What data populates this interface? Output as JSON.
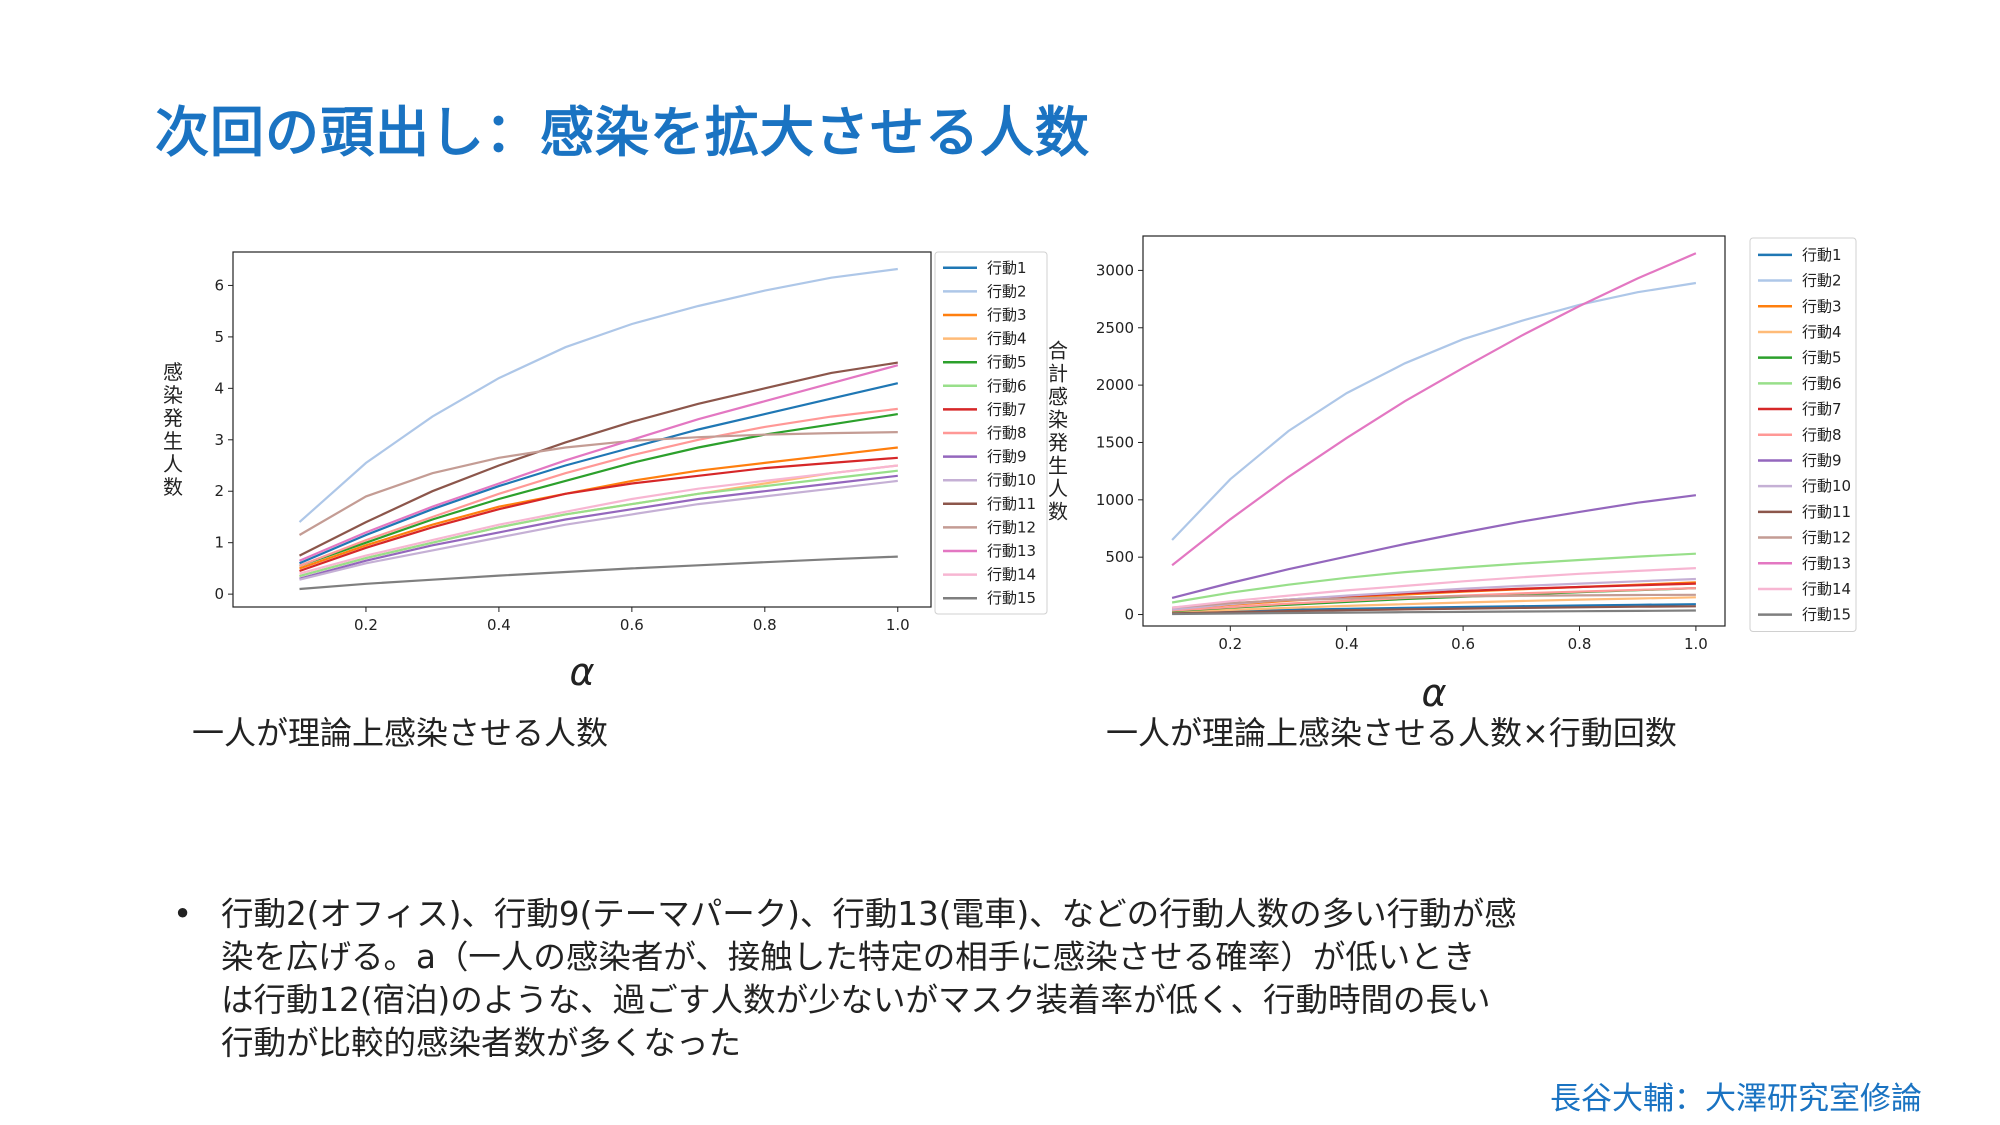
{
  "slide": {
    "title": "次回の頭出し：感染を拡大させる人数",
    "caption_left": "一人が理論上感染させる人数",
    "caption_right": "一人が理論上感染させる人数×行動回数",
    "bullet_symbol": "•",
    "bullet_lines": [
      "行動2(オフィス)、行動9(テーマパーク)、行動13(電車)、などの行動人数の多い行動が感",
      "染を広げる。a（一人の感染者が、接触した特定の相手に感染させる確率）が低いとき",
      "は行動12(宿泊)のような、過ごす人数が少ないがマスク装着率が低く、行動時間の長い",
      "行動が比較的感染者数が多くなった"
    ],
    "citation": "長谷大輔：大澤研究室修論"
  },
  "chart_data": [
    {
      "type": "line",
      "xlabel": "α",
      "ylabel": "感染発生人数",
      "xlim": [
        0.0,
        1.05
      ],
      "ylim": [
        -0.25,
        6.65
      ],
      "xticks": [
        "0.2",
        "0.4",
        "0.6",
        "0.8",
        "1.0"
      ],
      "yticks": [
        "0",
        "1",
        "2",
        "3",
        "4",
        "5",
        "6"
      ],
      "grid": false,
      "legend_position": "right-outside",
      "x": [
        0.1,
        0.2,
        0.3,
        0.4,
        0.5,
        0.6,
        0.7,
        0.8,
        0.9,
        1.0
      ],
      "series": [
        {
          "name": "行動1",
          "color": "#1f77b4",
          "values": [
            0.6,
            1.15,
            1.65,
            2.1,
            2.5,
            2.85,
            3.2,
            3.5,
            3.8,
            4.1
          ]
        },
        {
          "name": "行動2",
          "color": "#aec7e8",
          "values": [
            1.4,
            2.55,
            3.45,
            4.2,
            4.8,
            5.25,
            5.6,
            5.9,
            6.15,
            6.32
          ]
        },
        {
          "name": "行動3",
          "color": "#ff7f0e",
          "values": [
            0.5,
            0.95,
            1.35,
            1.7,
            1.95,
            2.2,
            2.4,
            2.55,
            2.7,
            2.85
          ]
        },
        {
          "name": "行動4",
          "color": "#ffbb78",
          "values": [
            0.35,
            0.7,
            1.0,
            1.3,
            1.55,
            1.75,
            1.95,
            2.15,
            2.35,
            2.5
          ]
        },
        {
          "name": "行動5",
          "color": "#2ca02c",
          "values": [
            0.55,
            1.0,
            1.45,
            1.85,
            2.2,
            2.55,
            2.85,
            3.1,
            3.3,
            3.5
          ]
        },
        {
          "name": "行動6",
          "color": "#98df8a",
          "values": [
            0.35,
            0.7,
            1.0,
            1.3,
            1.55,
            1.75,
            1.95,
            2.1,
            2.25,
            2.4
          ]
        },
        {
          "name": "行動7",
          "color": "#d62728",
          "values": [
            0.45,
            0.9,
            1.3,
            1.65,
            1.95,
            2.15,
            2.3,
            2.45,
            2.55,
            2.65
          ]
        },
        {
          "name": "行動8",
          "color": "#ff9896",
          "values": [
            0.55,
            1.05,
            1.5,
            1.95,
            2.35,
            2.7,
            3.0,
            3.25,
            3.45,
            3.6
          ]
        },
        {
          "name": "行動9",
          "color": "#9467bd",
          "values": [
            0.3,
            0.65,
            0.95,
            1.2,
            1.45,
            1.65,
            1.85,
            2.0,
            2.15,
            2.3
          ]
        },
        {
          "name": "行動10",
          "color": "#c5b0d5",
          "values": [
            0.28,
            0.6,
            0.85,
            1.1,
            1.35,
            1.55,
            1.75,
            1.9,
            2.05,
            2.2
          ]
        },
        {
          "name": "行動11",
          "color": "#8c564b",
          "values": [
            0.75,
            1.4,
            2.0,
            2.5,
            2.95,
            3.35,
            3.7,
            4.0,
            4.3,
            4.5
          ]
        },
        {
          "name": "行動12",
          "color": "#c49c94",
          "values": [
            1.15,
            1.9,
            2.35,
            2.65,
            2.85,
            2.98,
            3.05,
            3.1,
            3.13,
            3.15
          ]
        },
        {
          "name": "行動13",
          "color": "#e377c2",
          "values": [
            0.65,
            1.2,
            1.7,
            2.15,
            2.6,
            3.0,
            3.4,
            3.75,
            4.1,
            4.45
          ]
        },
        {
          "name": "行動14",
          "color": "#f7b6d2",
          "values": [
            0.4,
            0.75,
            1.05,
            1.35,
            1.6,
            1.85,
            2.05,
            2.2,
            2.35,
            2.5
          ]
        },
        {
          "name": "行動15",
          "color": "#7f7f7f",
          "values": [
            0.1,
            0.2,
            0.28,
            0.36,
            0.43,
            0.5,
            0.56,
            0.62,
            0.68,
            0.73
          ]
        }
      ]
    },
    {
      "type": "line",
      "xlabel": "α",
      "ylabel": "合計感染発生人数",
      "xlim": [
        0.05,
        1.05
      ],
      "ylim": [
        -100,
        3300
      ],
      "xticks": [
        "0.2",
        "0.4",
        "0.6",
        "0.8",
        "1.0"
      ],
      "yticks": [
        "0",
        "500",
        "1000",
        "1500",
        "2000",
        "2500",
        "3000"
      ],
      "grid": false,
      "legend_position": "right-outside",
      "x": [
        0.1,
        0.2,
        0.3,
        0.4,
        0.5,
        0.6,
        0.7,
        0.8,
        0.9,
        1.0
      ],
      "series": [
        {
          "name": "行動1",
          "color": "#1f77b4",
          "values": [
            15,
            28,
            40,
            50,
            58,
            66,
            73,
            79,
            85,
            90
          ]
        },
        {
          "name": "行動2",
          "color": "#aec7e8",
          "values": [
            650,
            1180,
            1600,
            1930,
            2190,
            2400,
            2560,
            2700,
            2810,
            2890
          ]
        },
        {
          "name": "行動3",
          "color": "#ff7f0e",
          "values": [
            45,
            85,
            120,
            150,
            175,
            200,
            220,
            240,
            260,
            280
          ]
        },
        {
          "name": "行動4",
          "color": "#ffbb78",
          "values": [
            20,
            40,
            58,
            75,
            90,
            105,
            118,
            130,
            140,
            150
          ]
        },
        {
          "name": "行動5",
          "color": "#2ca02c",
          "values": [
            30,
            60,
            85,
            110,
            135,
            155,
            175,
            195,
            212,
            230
          ]
        },
        {
          "name": "行動6",
          "color": "#98df8a",
          "values": [
            105,
            190,
            260,
            320,
            370,
            410,
            445,
            475,
            505,
            530
          ]
        },
        {
          "name": "行動7",
          "color": "#d62728",
          "values": [
            50,
            95,
            130,
            160,
            185,
            205,
            225,
            240,
            255,
            270
          ]
        },
        {
          "name": "行動8",
          "color": "#ff9896",
          "values": [
            35,
            65,
            95,
            120,
            145,
            165,
            185,
            200,
            215,
            230
          ]
        },
        {
          "name": "行動9",
          "color": "#9467bd",
          "values": [
            145,
            275,
            395,
            505,
            615,
            715,
            810,
            895,
            975,
            1040
          ]
        },
        {
          "name": "行動10",
          "color": "#c5b0d5",
          "values": [
            45,
            90,
            130,
            165,
            195,
            225,
            250,
            270,
            290,
            310
          ]
        },
        {
          "name": "行動11",
          "color": "#8c564b",
          "values": [
            10,
            20,
            30,
            38,
            45,
            52,
            58,
            63,
            68,
            72
          ]
        },
        {
          "name": "行動12",
          "color": "#c49c94",
          "values": [
            60,
            100,
            125,
            140,
            150,
            158,
            163,
            167,
            170,
            172
          ]
        },
        {
          "name": "行動13",
          "color": "#e377c2",
          "values": [
            430,
            830,
            1200,
            1540,
            1860,
            2150,
            2430,
            2690,
            2930,
            3150
          ]
        },
        {
          "name": "行動14",
          "color": "#f7b6d2",
          "values": [
            60,
            115,
            165,
            210,
            250,
            290,
            325,
            355,
            380,
            405
          ]
        },
        {
          "name": "行動15",
          "color": "#7f7f7f",
          "values": [
            5,
            9,
            13,
            17,
            20,
            23,
            26,
            29,
            32,
            35
          ]
        }
      ]
    }
  ]
}
